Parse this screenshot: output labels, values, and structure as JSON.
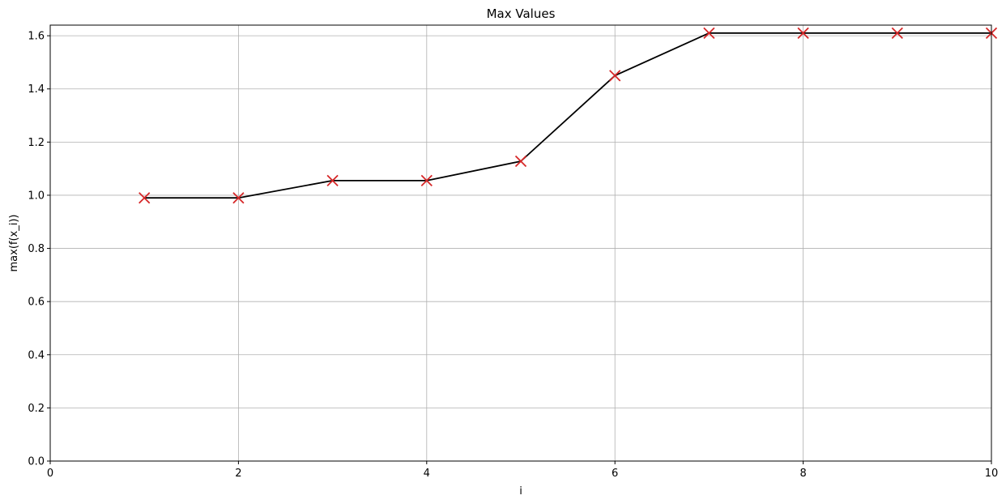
{
  "chart_data": {
    "type": "line",
    "title": "Max Values",
    "xlabel": "i",
    "ylabel": "max(f(x_i))",
    "xlim": [
      0,
      10
    ],
    "ylim": [
      0,
      1.64
    ],
    "xticks": [
      "0",
      "2",
      "4",
      "6",
      "8",
      "10"
    ],
    "yticks": [
      "0.0",
      "0.2",
      "0.4",
      "0.6",
      "0.8",
      "1.0",
      "1.2",
      "1.4",
      "1.6"
    ],
    "grid": true,
    "series": [
      {
        "x": [
          1,
          2,
          3,
          4,
          5,
          6,
          7,
          8,
          9,
          10
        ],
        "values": [
          0.99,
          0.99,
          1.055,
          1.055,
          1.128,
          1.45,
          1.61,
          1.61,
          1.61,
          1.61
        ],
        "line_color": "#000000",
        "marker": "x",
        "marker_color": "#d62728"
      }
    ]
  }
}
